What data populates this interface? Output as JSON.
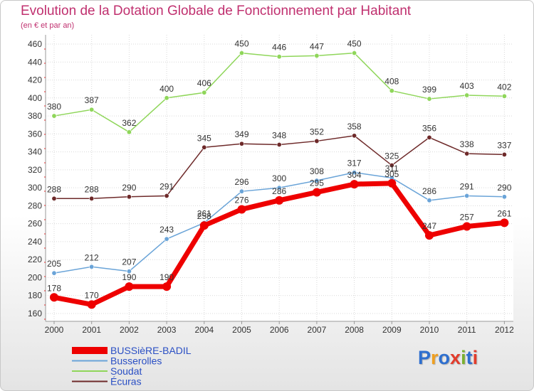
{
  "title": "Evolution de la Dotation Globale de Fonctionnement par Habitant",
  "subtitle": "(en € et par an)",
  "logo": {
    "text": "Proxiti",
    "colors": [
      "#2e6fcf",
      "#f0a020",
      "#2e6fcf",
      "#e23c2c",
      "#7ab030",
      "#2e6fcf",
      "#e23c2c"
    ]
  },
  "chart_data": {
    "type": "line",
    "title": "Evolution de la Dotation Globale de Fonctionnement par Habitant",
    "subtitle": "(en € et par an)",
    "x": [
      "2000",
      "2001",
      "2002",
      "2003",
      "2004",
      "2005",
      "2006",
      "2007",
      "2008",
      "2009",
      "2010",
      "2011",
      "2012"
    ],
    "ylim": [
      160,
      460
    ],
    "yticks": [
      160,
      180,
      200,
      220,
      240,
      260,
      280,
      300,
      320,
      340,
      360,
      380,
      400,
      420,
      440,
      460
    ],
    "grid": true,
    "series": [
      {
        "name": "Soudat",
        "color": "#8fd65a",
        "values": [
          380,
          387,
          362,
          400,
          406,
          450,
          446,
          447,
          450,
          408,
          399,
          403,
          402
        ]
      },
      {
        "name": "Écuras",
        "color": "#6e2a2a",
        "values": [
          288,
          288,
          290,
          291,
          345,
          349,
          348,
          352,
          358,
          325,
          356,
          338,
          337
        ]
      },
      {
        "name": "Busserolles",
        "color": "#6aa4d8",
        "values": [
          205,
          212,
          207,
          243,
          261,
          296,
          300,
          308,
          317,
          311,
          286,
          291,
          290
        ]
      },
      {
        "name": "BUSSièRE-BADIL",
        "color": "#ee0000",
        "values": [
          178,
          170,
          190,
          190,
          258,
          276,
          286,
          295,
          304,
          305,
          247,
          257,
          261
        ]
      }
    ],
    "legend": [
      {
        "name": "BUSSièRE-BADIL",
        "color": "#ee0000"
      },
      {
        "name": "Busserolles",
        "color": "#6aa4d8"
      },
      {
        "name": "Soudat",
        "color": "#8fd65a"
      },
      {
        "name": "Écuras",
        "color": "#6e2a2a"
      }
    ]
  }
}
